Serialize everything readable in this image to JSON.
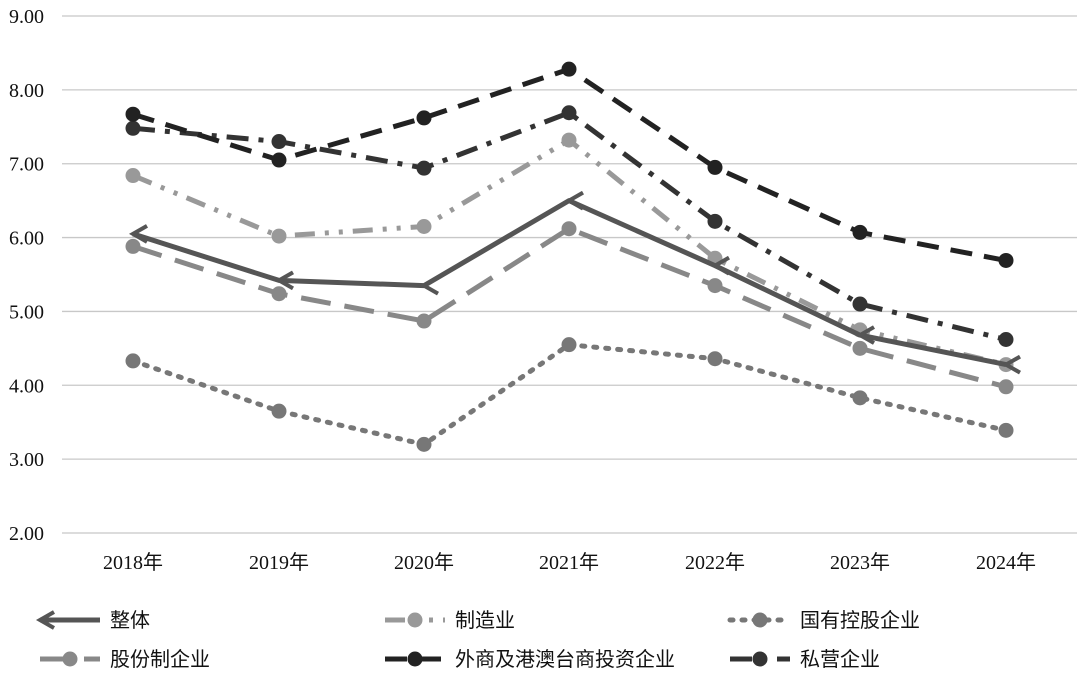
{
  "chart_data": {
    "type": "line",
    "categories": [
      "2018年",
      "2019年",
      "2020年",
      "2021年",
      "2022年",
      "2023年",
      "2024年"
    ],
    "ylim": [
      2.0,
      9.0
    ],
    "yticks": [
      "2.00",
      "3.00",
      "4.00",
      "5.00",
      "6.00",
      "7.00",
      "8.00",
      "9.00"
    ],
    "grid": true,
    "legend_position": "bottom",
    "series": [
      {
        "name": "整体",
        "values": [
          6.05,
          5.42,
          5.35,
          6.5,
          5.62,
          4.68,
          4.28
        ],
        "color": "#555555",
        "dash": "solid",
        "marker": "arrow"
      },
      {
        "name": "制造业",
        "values": [
          6.84,
          6.02,
          6.15,
          7.32,
          5.72,
          4.75,
          4.28
        ],
        "color": "#999999",
        "dash": "dashdotdot",
        "marker": "circle"
      },
      {
        "name": "国有控股企业",
        "values": [
          4.33,
          3.65,
          3.2,
          4.55,
          4.36,
          3.83,
          3.39
        ],
        "color": "#777777",
        "dash": "dotted",
        "marker": "circle"
      },
      {
        "name": "股份制企业",
        "values": [
          5.88,
          5.24,
          4.87,
          6.12,
          5.35,
          4.5,
          3.98
        ],
        "color": "#888888",
        "dash": "longdash",
        "marker": "circle"
      },
      {
        "name": "外商及港澳台商投资企业",
        "values": [
          7.67,
          7.05,
          7.62,
          8.28,
          6.95,
          6.07,
          5.69
        ],
        "color": "#222222",
        "dash": "dash",
        "marker": "circle"
      },
      {
        "name": "私营企业",
        "values": [
          7.48,
          7.3,
          6.94,
          7.69,
          6.22,
          5.1,
          4.62
        ],
        "color": "#333333",
        "dash": "dashdot",
        "marker": "circle"
      }
    ]
  }
}
